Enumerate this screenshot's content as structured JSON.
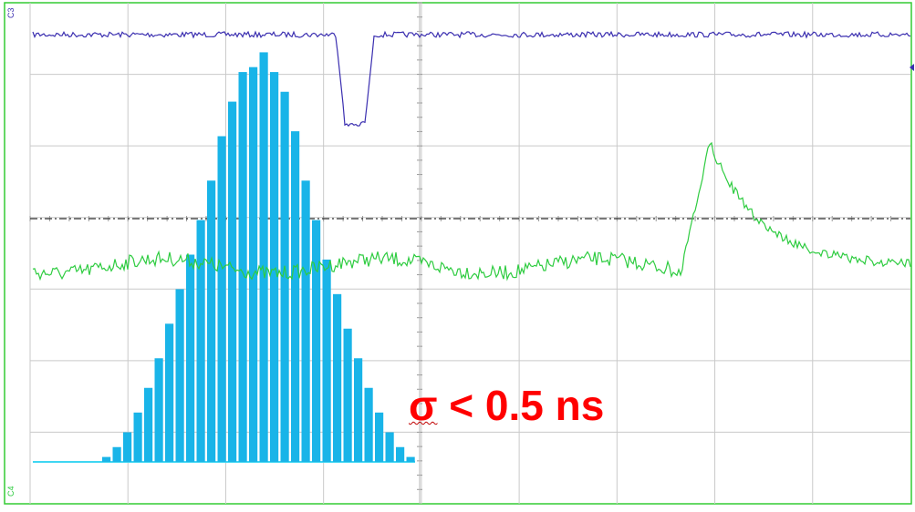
{
  "chart_data": {
    "type": "bar",
    "channels": [
      {
        "label": "C3",
        "color": "#3b2fb0",
        "kind": "scope-trace"
      },
      {
        "label": "C4",
        "color": "#2ecc40",
        "kind": "scope-trace"
      }
    ],
    "histogram": {
      "color": "#19b4e8",
      "baseline_color": "#3fd6f2",
      "values": [
        0.5,
        1.5,
        3,
        5,
        7.5,
        10.5,
        14,
        17.5,
        21,
        24.5,
        28.5,
        33,
        36.5,
        39.5,
        40,
        41.5,
        39.5,
        37.5,
        33.5,
        28.5,
        24.5,
        20.5,
        17,
        13.5,
        10.5,
        7.5,
        5,
        3,
        1.5,
        0.5
      ]
    },
    "annotation": {
      "symbol": "σ",
      "text": " < 0.5 ns"
    },
    "grid": true,
    "divisions": {
      "x": 9,
      "y": 8
    }
  }
}
